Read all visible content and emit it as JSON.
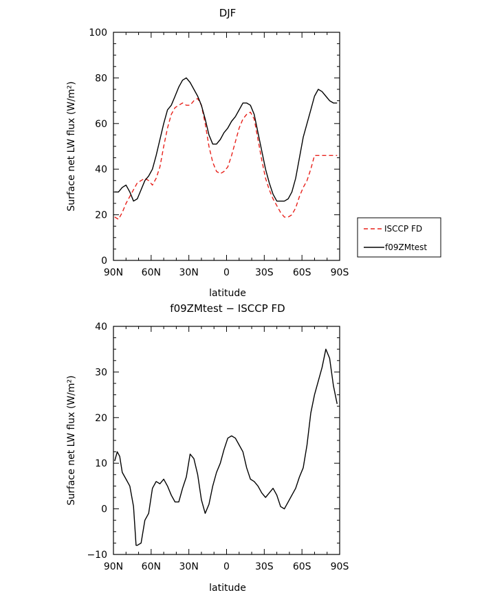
{
  "chart_data": [
    {
      "type": "line",
      "title": "DJF",
      "xlabel": "latitude",
      "ylabel": "Surface net LW flux (W/m²)",
      "ylim": [
        0,
        100
      ],
      "yticks": [
        0,
        20,
        40,
        60,
        80,
        100
      ],
      "xlim": [
        90,
        -90
      ],
      "xtick_values": [
        90,
        60,
        30,
        0,
        -30,
        -60,
        -90
      ],
      "xtick_labels": [
        "90N",
        "60N",
        "30N",
        "0",
        "30S",
        "60S",
        "90S"
      ],
      "legend_placement": "right",
      "series": [
        {
          "name": "ISCCP FD",
          "color": "#e8201a",
          "dash": "dashed",
          "x": [
            89,
            86,
            83,
            80,
            77,
            74,
            71,
            68,
            65,
            62,
            59,
            56,
            53,
            50,
            47,
            44,
            41,
            38,
            35,
            32,
            29,
            26,
            23,
            20,
            17,
            14,
            11,
            8,
            5,
            2,
            -1,
            -4,
            -7,
            -10,
            -13,
            -16,
            -19,
            -22,
            -25,
            -28,
            -31,
            -34,
            -37,
            -40,
            -43,
            -46,
            -49,
            -52,
            -55,
            -58,
            -61,
            -64,
            -67,
            -70,
            -73,
            -76,
            -79,
            -82,
            -85,
            -88
          ],
          "values": [
            19,
            18,
            21,
            25,
            28,
            31,
            34,
            35,
            36,
            35,
            33,
            36,
            41,
            50,
            58,
            64,
            67,
            68,
            69,
            68,
            68,
            70,
            71,
            68,
            60,
            50,
            43,
            39,
            38,
            39,
            41,
            46,
            52,
            58,
            62,
            64,
            65,
            62,
            53,
            44,
            36,
            31,
            27,
            24,
            21,
            19,
            19,
            20,
            23,
            28,
            32,
            35,
            40,
            46,
            46,
            46,
            46,
            46,
            46,
            46
          ]
        },
        {
          "name": "f09ZMtest",
          "color": "#000000",
          "dash": "solid",
          "x": [
            89,
            86,
            83,
            80,
            77,
            74,
            71,
            68,
            65,
            62,
            59,
            56,
            53,
            50,
            47,
            44,
            41,
            38,
            35,
            32,
            29,
            26,
            23,
            20,
            17,
            14,
            11,
            8,
            5,
            2,
            -1,
            -4,
            -7,
            -10,
            -13,
            -16,
            -19,
            -22,
            -25,
            -28,
            -31,
            -34,
            -37,
            -40,
            -43,
            -46,
            -49,
            -52,
            -55,
            -58,
            -61,
            -64,
            -67,
            -70,
            -73,
            -76,
            -79,
            -82,
            -85,
            -88
          ],
          "values": [
            30,
            30,
            32,
            33,
            30,
            26,
            27,
            31,
            35,
            37,
            40,
            46,
            53,
            60,
            66,
            68,
            72,
            76,
            79,
            80,
            78,
            75,
            72,
            68,
            62,
            55,
            51,
            51,
            53,
            56,
            58,
            61,
            63,
            66,
            69,
            69,
            68,
            64,
            56,
            48,
            40,
            34,
            29,
            26,
            26,
            26,
            27,
            30,
            36,
            45,
            54,
            60,
            66,
            72,
            75,
            74,
            72,
            70,
            69,
            69
          ]
        }
      ]
    },
    {
      "type": "line",
      "title": "f09ZMtest − ISCCP FD",
      "xlabel": "latitude",
      "ylabel": "Surface net LW flux (W/m²)",
      "ylim": [
        -10,
        40
      ],
      "yticks": [
        -10,
        0,
        10,
        20,
        30,
        40
      ],
      "ytick_labels": [
        "−10",
        "0",
        "10",
        "20",
        "30",
        "40"
      ],
      "xlim": [
        90,
        -90
      ],
      "xtick_values": [
        90,
        60,
        30,
        0,
        -30,
        -60,
        -90
      ],
      "xtick_labels": [
        "90N",
        "60N",
        "30N",
        "0",
        "30S",
        "60S",
        "90S"
      ],
      "series": [
        {
          "color": "#000000",
          "dash": "solid",
          "x": [
            89,
            87,
            85,
            83,
            80,
            77,
            74,
            72,
            71,
            68,
            65,
            62,
            59,
            56,
            53,
            50,
            47,
            44,
            41,
            38,
            35,
            32,
            29,
            26,
            23,
            20,
            17,
            14,
            11,
            8,
            5,
            2,
            -1,
            -4,
            -7,
            -10,
            -13,
            -16,
            -19,
            -22,
            -25,
            -28,
            -31,
            -34,
            -37,
            -40,
            -43,
            -46,
            -49,
            -52,
            -55,
            -58,
            -61,
            -64,
            -67,
            -70,
            -73,
            -76,
            -79,
            -82,
            -85,
            -88
          ],
          "values": [
            10.5,
            12.5,
            11.5,
            8,
            6.5,
            5,
            0.5,
            -8,
            -8,
            -7.5,
            -2.5,
            -1,
            4.5,
            6,
            5.5,
            6.5,
            5,
            3,
            1.5,
            1.5,
            4.5,
            7,
            12,
            11,
            7.5,
            2,
            -1,
            1,
            5,
            8,
            10,
            13,
            15.5,
            16,
            15.5,
            14,
            12.5,
            9,
            6.5,
            6,
            5,
            3.5,
            2.5,
            3.5,
            4.5,
            3,
            0.5,
            0,
            1.5,
            3,
            4.5,
            7,
            9,
            14,
            21,
            25,
            28,
            31,
            35,
            33,
            27,
            23
          ]
        }
      ]
    }
  ]
}
